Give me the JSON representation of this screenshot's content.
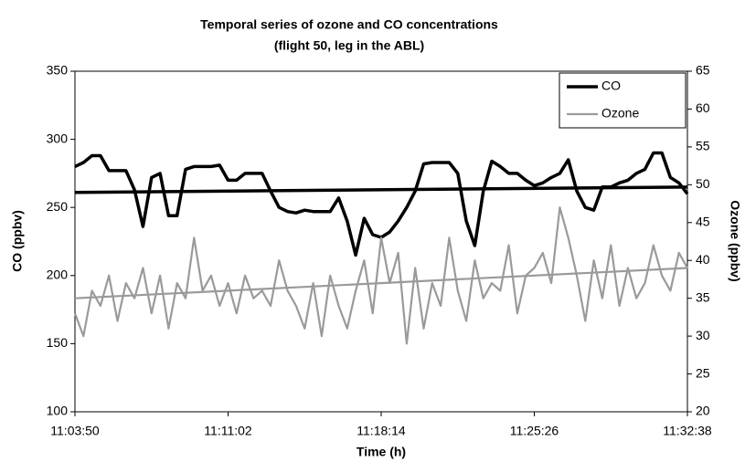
{
  "chart_data": {
    "type": "line",
    "title": "Temporal series of ozone and CO concentrations",
    "subtitle": "(flight 50, leg in the ABL)",
    "x_label": "Time (h)",
    "y_label": "CO (ppbv)",
    "y2_label": "Ozone (ppbv)",
    "xlim": [
      "11:03:50",
      "11:32:38"
    ],
    "xticks": [
      "11:03:50",
      "11:11:02",
      "11:18:14",
      "11:25:26",
      "11:32:38"
    ],
    "ylim": [
      100,
      350
    ],
    "yticks": [
      100,
      150,
      200,
      250,
      300,
      350
    ],
    "y2lim": [
      20,
      65
    ],
    "y2ticks": [
      20,
      25,
      30,
      35,
      40,
      45,
      50,
      55,
      60,
      65
    ],
    "legend": "upper right",
    "x": [
      "11:03:50",
      "11:04:14",
      "11:04:38",
      "11:05:02",
      "11:05:26",
      "11:05:50",
      "11:06:14",
      "11:06:38",
      "11:07:02",
      "11:07:26",
      "11:07:50",
      "11:08:14",
      "11:08:38",
      "11:09:02",
      "11:09:26",
      "11:09:50",
      "11:10:14",
      "11:10:38",
      "11:11:02",
      "11:11:26",
      "11:11:50",
      "11:12:14",
      "11:12:38",
      "11:13:02",
      "11:13:26",
      "11:13:50",
      "11:14:14",
      "11:14:38",
      "11:15:02",
      "11:15:26",
      "11:15:50",
      "11:16:14",
      "11:16:38",
      "11:17:02",
      "11:17:26",
      "11:17:50",
      "11:18:14",
      "11:18:38",
      "11:19:02",
      "11:19:26",
      "11:19:50",
      "11:20:14",
      "11:20:38",
      "11:21:02",
      "11:21:26",
      "11:21:50",
      "11:22:14",
      "11:22:38",
      "11:23:02",
      "11:23:26",
      "11:23:50",
      "11:24:14",
      "11:24:38",
      "11:25:02",
      "11:25:26",
      "11:25:50",
      "11:26:14",
      "11:26:38",
      "11:27:02",
      "11:27:26",
      "11:27:50",
      "11:28:14",
      "11:28:38",
      "11:29:02",
      "11:29:26",
      "11:29:50",
      "11:30:14",
      "11:30:38",
      "11:31:02",
      "11:31:26",
      "11:31:50",
      "11:32:14",
      "11:32:38"
    ],
    "series": [
      {
        "name": "CO",
        "color": "#000000",
        "width": 3.5,
        "axis": "y",
        "values": [
          280,
          283,
          288,
          288,
          277,
          277,
          277,
          263,
          236,
          272,
          275,
          244,
          244,
          278,
          280,
          280,
          280,
          281,
          270,
          270,
          275,
          275,
          275,
          262,
          250,
          247,
          246,
          248,
          247,
          247,
          247,
          257,
          240,
          215,
          242,
          230,
          228,
          232,
          240,
          250,
          262,
          282,
          283,
          283,
          283,
          275,
          240,
          222,
          262,
          284,
          280,
          275,
          275,
          270,
          266,
          268,
          272,
          275,
          285,
          262,
          250,
          248,
          265,
          265,
          268,
          270,
          275,
          278,
          290,
          290,
          272,
          268,
          260
        ],
        "trend": [
          261,
          265
        ]
      },
      {
        "name": "Ozone",
        "color": "#9a9a9a",
        "width": 2.2,
        "axis": "y2",
        "values": [
          33,
          30,
          36,
          34,
          38,
          32,
          37,
          35,
          39,
          33,
          38,
          31,
          37,
          35,
          43,
          36,
          38,
          34,
          37,
          33,
          38,
          35,
          36,
          34,
          40,
          36,
          34,
          31,
          37,
          30,
          38,
          34,
          31,
          36,
          40,
          33,
          43,
          37,
          41,
          29,
          39,
          31,
          37,
          34,
          43,
          36,
          32,
          40,
          35,
          37,
          36,
          42,
          33,
          38,
          39,
          41,
          37,
          47,
          43,
          38,
          32,
          40,
          35,
          42,
          34,
          39,
          35,
          37,
          42,
          38,
          36,
          41,
          39
        ],
        "trend": [
          35,
          39
        ]
      }
    ]
  }
}
